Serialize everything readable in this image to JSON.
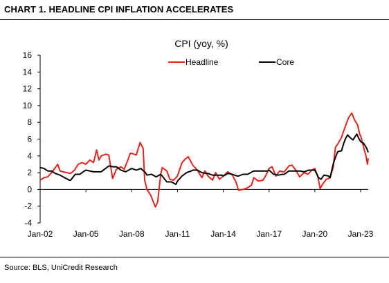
{
  "header": {
    "title": "CHART 1. HEADLINE CPI INFLATION ACCELERATES"
  },
  "footer": {
    "source": "Source: BLS, UniCredit Research"
  },
  "chart_data": {
    "type": "line",
    "title": "CPI (yoy, %)",
    "xlabel": "",
    "ylabel": "",
    "ylim": [
      -4,
      16
    ],
    "yticks": [
      -4,
      -2,
      0,
      2,
      4,
      6,
      8,
      10,
      12,
      14,
      16
    ],
    "xlim": [
      2002.0,
      2023.5
    ],
    "xticks": [
      {
        "label": "Jan-02",
        "value": 2002.0
      },
      {
        "label": "Jan-05",
        "value": 2005.0
      },
      {
        "label": "Jan-08",
        "value": 2008.0
      },
      {
        "label": "Jan-11",
        "value": 2011.0
      },
      {
        "label": "Jan-14",
        "value": 2014.0
      },
      {
        "label": "Jan-17",
        "value": 2017.0
      },
      {
        "label": "Jan-20",
        "value": 2020.0
      },
      {
        "label": "Jan-23",
        "value": 2023.0
      }
    ],
    "grid": false,
    "legend": "top",
    "series": [
      {
        "name": "Headline",
        "color": "#e3231c",
        "points": [
          [
            2002.0,
            1.1
          ],
          [
            2002.25,
            1.4
          ],
          [
            2002.5,
            1.5
          ],
          [
            2002.75,
            2.0
          ],
          [
            2003.0,
            2.6
          ],
          [
            2003.15,
            3.0
          ],
          [
            2003.3,
            2.2
          ],
          [
            2003.5,
            2.1
          ],
          [
            2003.75,
            2.0
          ],
          [
            2004.0,
            1.9
          ],
          [
            2004.25,
            2.3
          ],
          [
            2004.5,
            3.0
          ],
          [
            2004.75,
            3.2
          ],
          [
            2005.0,
            3.0
          ],
          [
            2005.25,
            3.5
          ],
          [
            2005.5,
            3.2
          ],
          [
            2005.7,
            4.7
          ],
          [
            2005.85,
            3.5
          ],
          [
            2006.0,
            4.0
          ],
          [
            2006.3,
            4.2
          ],
          [
            2006.5,
            4.1
          ],
          [
            2006.75,
            1.3
          ],
          [
            2007.0,
            2.4
          ],
          [
            2007.3,
            2.7
          ],
          [
            2007.5,
            2.4
          ],
          [
            2007.75,
            3.5
          ],
          [
            2007.9,
            4.3
          ],
          [
            2008.0,
            4.3
          ],
          [
            2008.3,
            4.1
          ],
          [
            2008.55,
            5.6
          ],
          [
            2008.75,
            4.9
          ],
          [
            2008.85,
            1.1
          ],
          [
            2009.0,
            0.0
          ],
          [
            2009.25,
            -0.7
          ],
          [
            2009.55,
            -2.1
          ],
          [
            2009.7,
            -1.5
          ],
          [
            2009.9,
            1.8
          ],
          [
            2010.0,
            2.6
          ],
          [
            2010.3,
            2.2
          ],
          [
            2010.5,
            1.2
          ],
          [
            2010.75,
            1.1
          ],
          [
            2011.0,
            1.6
          ],
          [
            2011.3,
            3.2
          ],
          [
            2011.5,
            3.6
          ],
          [
            2011.7,
            3.9
          ],
          [
            2012.0,
            2.9
          ],
          [
            2012.3,
            2.3
          ],
          [
            2012.6,
            1.4
          ],
          [
            2012.8,
            2.2
          ],
          [
            2013.0,
            1.6
          ],
          [
            2013.3,
            1.1
          ],
          [
            2013.5,
            2.0
          ],
          [
            2013.75,
            1.2
          ],
          [
            2014.0,
            1.6
          ],
          [
            2014.3,
            2.1
          ],
          [
            2014.6,
            1.7
          ],
          [
            2014.85,
            0.8
          ],
          [
            2015.0,
            -0.1
          ],
          [
            2015.3,
            0.0
          ],
          [
            2015.6,
            0.2
          ],
          [
            2015.85,
            0.5
          ],
          [
            2016.0,
            1.4
          ],
          [
            2016.3,
            1.0
          ],
          [
            2016.6,
            1.1
          ],
          [
            2016.8,
            1.7
          ],
          [
            2017.0,
            2.5
          ],
          [
            2017.2,
            2.7
          ],
          [
            2017.45,
            1.6
          ],
          [
            2017.7,
            2.2
          ],
          [
            2017.9,
            2.1
          ],
          [
            2018.0,
            2.1
          ],
          [
            2018.3,
            2.8
          ],
          [
            2018.5,
            2.9
          ],
          [
            2018.75,
            2.3
          ],
          [
            2019.0,
            1.5
          ],
          [
            2019.3,
            2.0
          ],
          [
            2019.55,
            1.8
          ],
          [
            2019.8,
            2.3
          ],
          [
            2020.0,
            2.5
          ],
          [
            2020.2,
            1.5
          ],
          [
            2020.35,
            0.1
          ],
          [
            2020.5,
            0.6
          ],
          [
            2020.75,
            1.2
          ],
          [
            2021.0,
            1.4
          ],
          [
            2021.2,
            2.6
          ],
          [
            2021.35,
            5.0
          ],
          [
            2021.5,
            5.4
          ],
          [
            2021.75,
            6.2
          ],
          [
            2021.9,
            7.0
          ],
          [
            2022.0,
            7.5
          ],
          [
            2022.2,
            8.5
          ],
          [
            2022.42,
            9.1
          ],
          [
            2022.6,
            8.3
          ],
          [
            2022.8,
            7.7
          ],
          [
            2022.95,
            6.5
          ],
          [
            2023.0,
            6.4
          ],
          [
            2023.2,
            5.0
          ],
          [
            2023.35,
            4.0
          ],
          [
            2023.45,
            3.0
          ],
          [
            2023.5,
            3.7
          ]
        ]
      },
      {
        "name": "Core",
        "color": "#000000",
        "points": [
          [
            2002.0,
            2.6
          ],
          [
            2002.25,
            2.5
          ],
          [
            2002.5,
            2.2
          ],
          [
            2002.75,
            2.2
          ],
          [
            2003.0,
            1.9
          ],
          [
            2003.3,
            1.7
          ],
          [
            2003.6,
            1.4
          ],
          [
            2003.9,
            1.1
          ],
          [
            2004.0,
            1.1
          ],
          [
            2004.3,
            1.8
          ],
          [
            2004.6,
            1.8
          ],
          [
            2004.9,
            2.2
          ],
          [
            2005.0,
            2.3
          ],
          [
            2005.5,
            2.1
          ],
          [
            2006.0,
            2.1
          ],
          [
            2006.5,
            2.8
          ],
          [
            2006.8,
            2.7
          ],
          [
            2007.0,
            2.7
          ],
          [
            2007.3,
            2.3
          ],
          [
            2007.6,
            2.1
          ],
          [
            2007.9,
            2.4
          ],
          [
            2008.0,
            2.5
          ],
          [
            2008.3,
            2.3
          ],
          [
            2008.6,
            2.5
          ],
          [
            2008.9,
            2.0
          ],
          [
            2009.0,
            1.7
          ],
          [
            2009.3,
            1.8
          ],
          [
            2009.6,
            1.5
          ],
          [
            2009.9,
            1.8
          ],
          [
            2010.0,
            1.6
          ],
          [
            2010.3,
            0.9
          ],
          [
            2010.6,
            0.9
          ],
          [
            2010.9,
            0.6
          ],
          [
            2011.0,
            1.0
          ],
          [
            2011.3,
            1.6
          ],
          [
            2011.6,
            2.0
          ],
          [
            2011.9,
            2.2
          ],
          [
            2012.0,
            2.3
          ],
          [
            2012.3,
            2.3
          ],
          [
            2012.6,
            2.0
          ],
          [
            2012.9,
            1.9
          ],
          [
            2013.0,
            1.9
          ],
          [
            2013.3,
            1.7
          ],
          [
            2013.6,
            1.7
          ],
          [
            2013.9,
            1.7
          ],
          [
            2014.0,
            1.6
          ],
          [
            2014.3,
            1.9
          ],
          [
            2014.6,
            1.8
          ],
          [
            2014.9,
            1.6
          ],
          [
            2015.0,
            1.6
          ],
          [
            2015.3,
            1.8
          ],
          [
            2015.6,
            1.8
          ],
          [
            2015.9,
            2.1
          ],
          [
            2016.0,
            2.2
          ],
          [
            2016.3,
            2.2
          ],
          [
            2016.6,
            2.2
          ],
          [
            2016.9,
            2.2
          ],
          [
            2017.0,
            2.3
          ],
          [
            2017.3,
            1.8
          ],
          [
            2017.6,
            1.7
          ],
          [
            2017.9,
            1.8
          ],
          [
            2018.0,
            1.8
          ],
          [
            2018.3,
            2.2
          ],
          [
            2018.6,
            2.2
          ],
          [
            2018.9,
            2.2
          ],
          [
            2019.0,
            2.2
          ],
          [
            2019.3,
            2.1
          ],
          [
            2019.6,
            2.3
          ],
          [
            2019.9,
            2.3
          ],
          [
            2020.0,
            2.3
          ],
          [
            2020.25,
            1.4
          ],
          [
            2020.4,
            1.2
          ],
          [
            2020.6,
            1.7
          ],
          [
            2020.9,
            1.6
          ],
          [
            2021.0,
            1.4
          ],
          [
            2021.2,
            3.0
          ],
          [
            2021.35,
            3.8
          ],
          [
            2021.5,
            4.5
          ],
          [
            2021.75,
            4.6
          ],
          [
            2021.9,
            5.5
          ],
          [
            2022.0,
            6.0
          ],
          [
            2022.15,
            6.5
          ],
          [
            2022.3,
            6.2
          ],
          [
            2022.5,
            5.9
          ],
          [
            2022.75,
            6.6
          ],
          [
            2022.9,
            6.0
          ],
          [
            2023.0,
            5.7
          ],
          [
            2023.2,
            5.5
          ],
          [
            2023.4,
            4.9
          ],
          [
            2023.5,
            4.4
          ]
        ]
      }
    ]
  }
}
